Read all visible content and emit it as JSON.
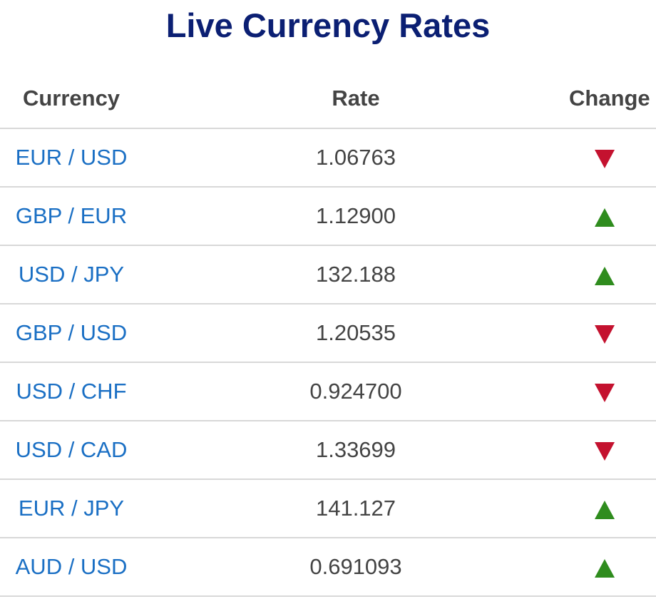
{
  "title": "Live Currency Rates",
  "headers": {
    "currency": "Currency",
    "rate": "Rate",
    "change": "Change"
  },
  "colors": {
    "title": "#0b1f73",
    "link": "#1a6fc4",
    "up": "#2f8c1e",
    "down": "#c4122f"
  },
  "rows": [
    {
      "pair": "EUR / USD",
      "rate": "1.06763",
      "change": "down"
    },
    {
      "pair": "GBP / EUR",
      "rate": "1.12900",
      "change": "up"
    },
    {
      "pair": "USD / JPY",
      "rate": "132.188",
      "change": "up"
    },
    {
      "pair": "GBP / USD",
      "rate": "1.20535",
      "change": "down"
    },
    {
      "pair": "USD / CHF",
      "rate": "0.924700",
      "change": "down"
    },
    {
      "pair": "USD / CAD",
      "rate": "1.33699",
      "change": "down"
    },
    {
      "pair": "EUR / JPY",
      "rate": "141.127",
      "change": "up"
    },
    {
      "pair": "AUD / USD",
      "rate": "0.691093",
      "change": "up"
    }
  ]
}
